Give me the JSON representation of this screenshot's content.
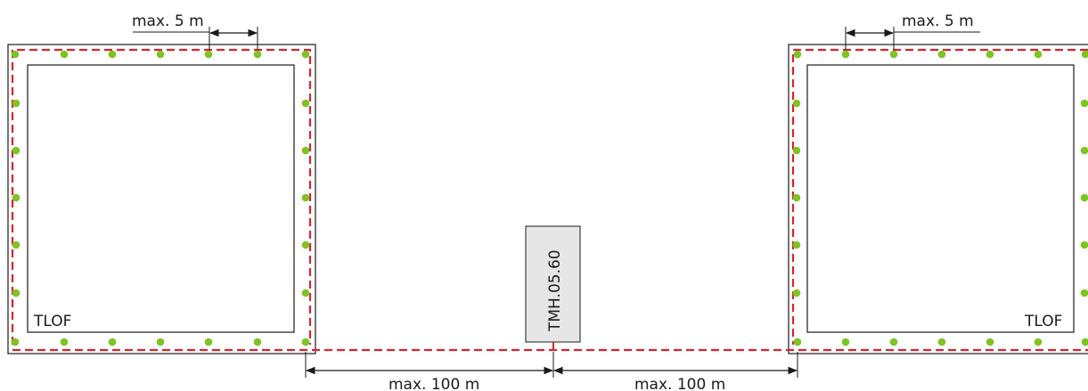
{
  "left_area": {
    "label": "TLOF"
  },
  "right_area": {
    "label": "TLOF"
  },
  "controller": {
    "label": "TMH.05.60"
  },
  "dimensions": {
    "spacing_left": "max. 5 m",
    "spacing_right": "max. 5 m",
    "distance_left": "max. 100 m",
    "distance_right": "max. 100 m"
  },
  "colors": {
    "outline": "#1a1a1a",
    "cable": "#d9232d",
    "light": "#7dc424",
    "controller_fill": "#e6e6e6"
  }
}
